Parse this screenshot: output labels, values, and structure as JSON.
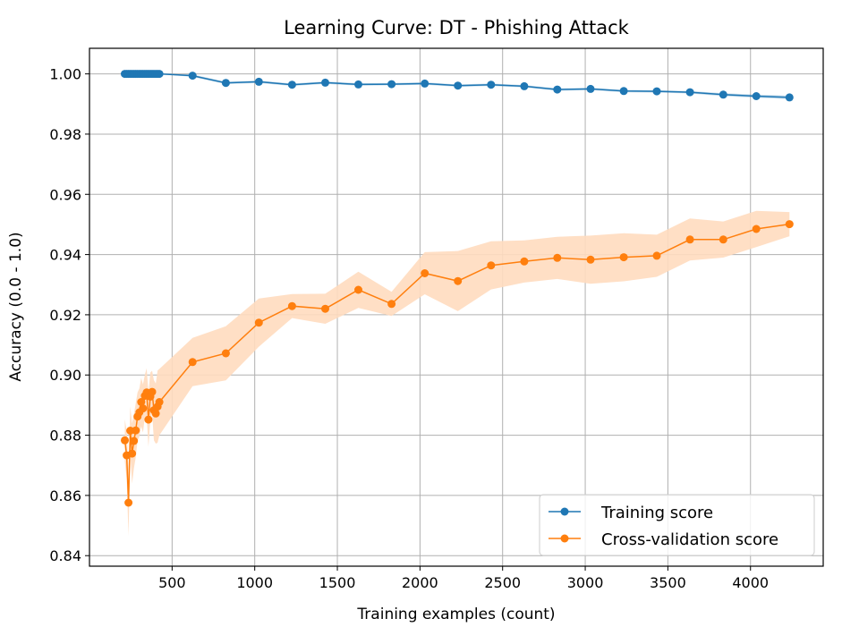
{
  "chart_data": {
    "type": "line",
    "title": "Learning Curve: DT - Phishing Attack",
    "xlabel": "Training examples (count)",
    "ylabel": "Accuracy (0.0 - 1.0)",
    "xlim": [
      0,
      4440
    ],
    "ylim": [
      0.8365,
      1.0085
    ],
    "xticks": [
      500,
      1000,
      1500,
      2000,
      2500,
      3000,
      3500,
      4000
    ],
    "yticks": [
      0.84,
      0.86,
      0.88,
      0.9,
      0.92,
      0.94,
      0.96,
      0.98,
      1.0
    ],
    "xtick_labels": [
      "500",
      "1000",
      "1500",
      "2000",
      "2500",
      "3000",
      "3500",
      "4000"
    ],
    "ytick_labels": [
      "0.84",
      "0.86",
      "0.88",
      "0.90",
      "0.92",
      "0.94",
      "0.96",
      "0.98",
      "1.00"
    ],
    "grid": true,
    "legend": "lower-right",
    "series": [
      {
        "name": "Training score",
        "color": "#1f77b4",
        "band_color": "#1f77b4",
        "points": [
          [
            214,
            1.0
          ],
          [
            225,
            1.0
          ],
          [
            236,
            1.0
          ],
          [
            247,
            1.0
          ],
          [
            258,
            1.0
          ],
          [
            269,
            1.0
          ],
          [
            280,
            1.0
          ],
          [
            291,
            1.0
          ],
          [
            302,
            1.0
          ],
          [
            313,
            1.0
          ],
          [
            324,
            1.0
          ],
          [
            335,
            1.0
          ],
          [
            346,
            1.0
          ],
          [
            357,
            1.0
          ],
          [
            368,
            1.0
          ],
          [
            379,
            1.0
          ],
          [
            390,
            1.0
          ],
          [
            401,
            1.0
          ],
          [
            412,
            1.0
          ],
          [
            423,
            1.0
          ],
          [
            624,
            0.9994
          ],
          [
            825,
            0.997
          ],
          [
            1025,
            0.9974
          ],
          [
            1226,
            0.9964
          ],
          [
            1427,
            0.9971
          ],
          [
            1627,
            0.9965
          ],
          [
            1828,
            0.9966
          ],
          [
            2029,
            0.9968
          ],
          [
            2229,
            0.9961
          ],
          [
            2430,
            0.9964
          ],
          [
            2631,
            0.9959
          ],
          [
            2831,
            0.9948
          ],
          [
            3032,
            0.995
          ],
          [
            3233,
            0.9943
          ],
          [
            3433,
            0.9942
          ],
          [
            3634,
            0.9939
          ],
          [
            3835,
            0.9931
          ],
          [
            4035,
            0.9926
          ],
          [
            4236,
            0.9922
          ]
        ],
        "band_halfwidth": [
          0,
          0,
          0,
          0,
          0,
          0,
          0,
          0,
          0,
          0,
          0,
          0,
          0,
          0,
          0,
          0,
          0,
          0,
          0,
          0,
          0.0004,
          0.0004,
          0.0004,
          0.0004,
          0.0004,
          0.0004,
          0.0004,
          0.0004,
          0.0004,
          0.0004,
          0.0004,
          0.0004,
          0.0004,
          0.0004,
          0.0004,
          0.0004,
          0.0005,
          0.0005,
          0.0006
        ]
      },
      {
        "name": "Cross-validation score",
        "color": "#ff7f0e",
        "band_color": "#ffdcbf",
        "points": [
          [
            214,
            0.8783
          ],
          [
            225,
            0.8733
          ],
          [
            236,
            0.8576
          ],
          [
            247,
            0.8815
          ],
          [
            258,
            0.8739
          ],
          [
            269,
            0.8781
          ],
          [
            280,
            0.8816
          ],
          [
            291,
            0.8862
          ],
          [
            302,
            0.8876
          ],
          [
            313,
            0.891
          ],
          [
            324,
            0.8889
          ],
          [
            335,
            0.8931
          ],
          [
            346,
            0.8942
          ],
          [
            357,
            0.8852
          ],
          [
            368,
            0.8928
          ],
          [
            379,
            0.8944
          ],
          [
            390,
            0.8883
          ],
          [
            401,
            0.8872
          ],
          [
            412,
            0.8895
          ],
          [
            423,
            0.891
          ],
          [
            624,
            0.9043
          ],
          [
            825,
            0.9072
          ],
          [
            1025,
            0.9174
          ],
          [
            1226,
            0.9229
          ],
          [
            1427,
            0.922
          ],
          [
            1627,
            0.9283
          ],
          [
            1828,
            0.9236
          ],
          [
            2029,
            0.9338
          ],
          [
            2229,
            0.9312
          ],
          [
            2430,
            0.9364
          ],
          [
            2631,
            0.9377
          ],
          [
            2831,
            0.9389
          ],
          [
            3032,
            0.9383
          ],
          [
            3233,
            0.9391
          ],
          [
            3433,
            0.9396
          ],
          [
            3634,
            0.945
          ],
          [
            3835,
            0.945
          ],
          [
            4035,
            0.9485
          ],
          [
            4236,
            0.9501
          ]
        ],
        "band_halfwidth": [
          0.007,
          0.008,
          0.011,
          0.008,
          0.01,
          0.009,
          0.009,
          0.008,
          0.008,
          0.008,
          0.008,
          0.007,
          0.008,
          0.009,
          0.008,
          0.007,
          0.01,
          0.01,
          0.012,
          0.011,
          0.008,
          0.009,
          0.008,
          0.004,
          0.005,
          0.006,
          0.004,
          0.007,
          0.01,
          0.008,
          0.007,
          0.007,
          0.008,
          0.008,
          0.007,
          0.007,
          0.006,
          0.006,
          0.004
        ]
      }
    ]
  }
}
